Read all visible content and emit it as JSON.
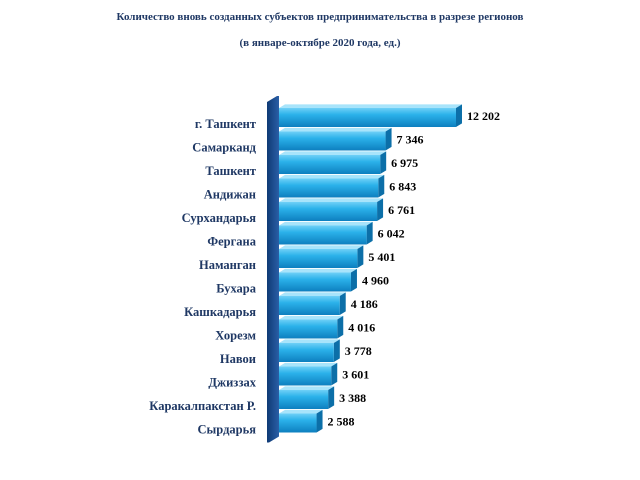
{
  "title_line1": "Количество вновь созданных субъектов предпринимательства в разрезе регионов",
  "title_line2": "(в январе-октябре 2020 года, ед.)",
  "colors": {
    "bar_light": "#7fd4f6",
    "bar_main": "#1ba3e0",
    "bar_dark": "#0c6fa8",
    "bar_top": "#a8e4fb",
    "base_wall": "#1a4a8a",
    "label_text": "#1f3864"
  },
  "chart_data": {
    "type": "bar",
    "orientation": "horizontal",
    "style": "3d",
    "title": "Количество вновь созданных субъектов предпринимательства в разрезе регионов",
    "subtitle": "(в январе-октябре 2020 года, ед.)",
    "categories": [
      "г. Ташкент",
      "Самарканд",
      "Ташкент",
      "Андижан",
      "Сурхандарья",
      "Фергана",
      "Наманган",
      "Бухара",
      "Кашкадарья",
      "Хорезм",
      "Навои",
      "Джиззах",
      "Каракалпакстан Р.",
      "Сырдарья"
    ],
    "values": [
      12202,
      7346,
      6975,
      6843,
      6761,
      6042,
      5401,
      4960,
      4186,
      4016,
      3778,
      3601,
      3388,
      2588
    ],
    "value_labels": [
      "12 202",
      "7 346",
      "6 975",
      "6 843",
      "6 761",
      "6 042",
      "5 401",
      "4 960",
      "4 186",
      "4 016",
      "3 778",
      "3 601",
      "3 388",
      "2 588"
    ],
    "xlim": [
      0,
      12202
    ],
    "grid": false,
    "legend": "none"
  }
}
